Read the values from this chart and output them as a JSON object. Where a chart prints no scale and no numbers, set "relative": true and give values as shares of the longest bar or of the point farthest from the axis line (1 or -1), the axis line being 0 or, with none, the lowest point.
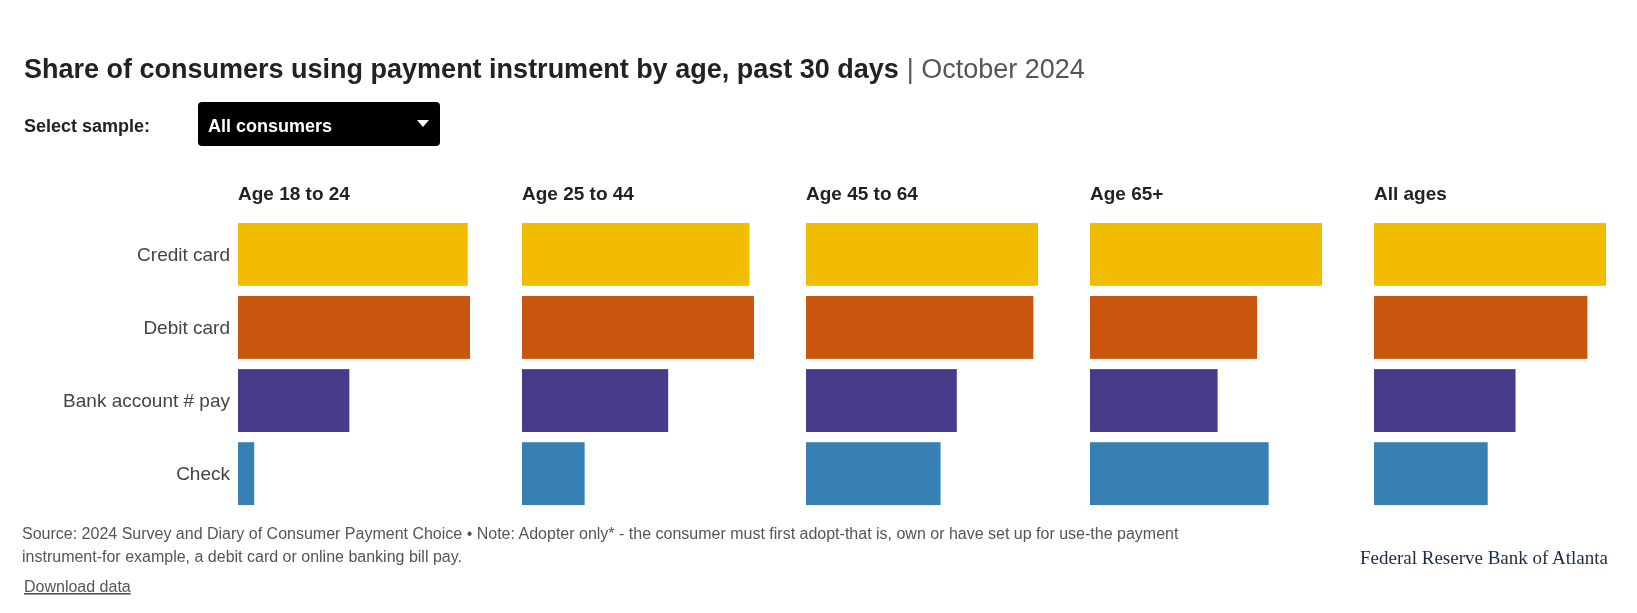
{
  "chart_data": [
    {
      "type": "bar",
      "orientation": "horizontal",
      "relative": true,
      "title": "Age 18 to 24",
      "categories": [
        "Credit card",
        "Debit card",
        "Bank account # pay",
        "Check"
      ],
      "values": [
        0.99,
        1,
        0.48,
        0.07
      ],
      "colors": [
        "#f2bc00",
        "#c9560f",
        "#4a3b8a",
        "#3680b4"
      ],
      "annotations": [
        "Share of consumers using payment instrument by age, past 30 days",
        "| October 2024",
        "Select sample:",
        "All consumers",
        "Source: 2024 Survey and Diary of Consumer Payment Choice • Note: Adopter only* - the consumer must first adopt-that is, own or have set up for use-the payment instrument-for example, a debit card or online banking bill pay.",
        "Download data",
        "Federal Reserve Bank of Atlanta"
      ]
    },
    {
      "type": "bar",
      "orientation": "horizontal",
      "relative": true,
      "title": "Age 25 to 44",
      "tick_labels": false,
      "categories": [
        "Credit card",
        "Debit card",
        "Bank account # pay",
        "Check"
      ],
      "values": [
        0.98,
        1,
        0.63,
        0.27
      ],
      "colors": [
        "#f2bc00",
        "#c9560f",
        "#4a3b8a",
        "#3680b4"
      ]
    },
    {
      "type": "bar",
      "orientation": "horizontal",
      "relative": true,
      "title": "Age 45 to 64",
      "tick_labels": false,
      "categories": [
        "Credit card",
        "Debit card",
        "Bank account # pay",
        "Check"
      ],
      "values": [
        1,
        0.98,
        0.65,
        0.58
      ],
      "colors": [
        "#f2bc00",
        "#c9560f",
        "#4a3b8a",
        "#3680b4"
      ]
    },
    {
      "type": "bar",
      "orientation": "horizontal",
      "relative": true,
      "title": "Age 65+",
      "tick_labels": false,
      "categories": [
        "Credit card",
        "Debit card",
        "Bank account # pay",
        "Check"
      ],
      "values": [
        1,
        0.72,
        0.55,
        0.77
      ],
      "colors": [
        "#f2bc00",
        "#c9560f",
        "#4a3b8a",
        "#3680b4"
      ]
    },
    {
      "type": "bar",
      "orientation": "horizontal",
      "relative": true,
      "title": "All ages",
      "tick_labels": false,
      "categories": [
        "Credit card",
        "Debit card",
        "Bank account # pay",
        "Check"
      ],
      "values": [
        1,
        0.92,
        0.61,
        0.49
      ],
      "colors": [
        "#f2bc00",
        "#c9560f",
        "#4a3b8a",
        "#3680b4"
      ]
    }
  ]
}
